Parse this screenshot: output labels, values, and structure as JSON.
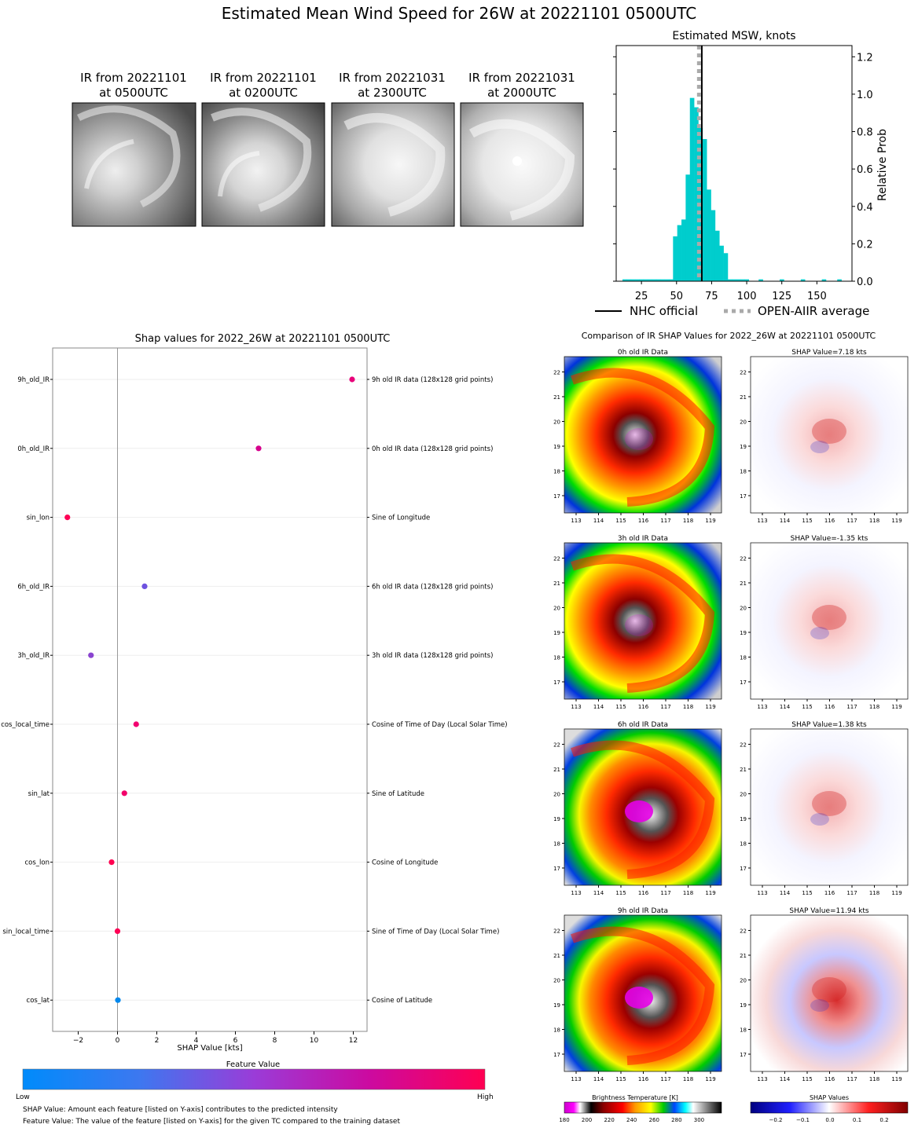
{
  "suptitle": "Estimated Mean Wind Speed for 26W at 20221101 0500UTC",
  "ir_panels": [
    {
      "line1": "IR from 20221101",
      "line2": "at 0500UTC"
    },
    {
      "line1": "IR from 20221101",
      "line2": "at 0200UTC"
    },
    {
      "line1": "IR from 20221031",
      "line2": "at 2300UTC"
    },
    {
      "line1": "IR from 20221031",
      "line2": "at 2000UTC"
    }
  ],
  "hist": {
    "title": "Estimated MSW, knots",
    "ylabel": "Relative Prob",
    "x_ticks": [
      "25",
      "50",
      "75",
      "100",
      "125",
      "150"
    ],
    "y_ticks": [
      "0.0",
      "0.2",
      "0.4",
      "0.6",
      "0.8",
      "1.0",
      "1.2"
    ],
    "legend": [
      "NHC official",
      "OPEN-AIIR average"
    ]
  },
  "shap": {
    "title": "Shap values for 2022_26W at 20221101 0500UTC",
    "xlabel": "SHAP Value [kts]",
    "x_ticks": [
      "−2",
      "0",
      "2",
      "4",
      "6",
      "8",
      "10",
      "12"
    ],
    "colorbar_title": "Feature Value",
    "colorbar_low": "Low",
    "colorbar_high": "High",
    "footnote1": "SHAP Value: Amount each feature [listed on Y-axis] contributes to the predicted intensity",
    "footnote2": "Feature Value: The value of the feature [listed on Y-axis] for the given TC compared to the training dataset"
  },
  "comparison": {
    "title": "Comparison of IR SHAP Values for 2022_26W at 20221101 0500UTC",
    "rows": [
      {
        "ir_title": "0h old IR Data",
        "shap_title": "SHAP Value=7.18 kts"
      },
      {
        "ir_title": "3h old IR Data",
        "shap_title": "SHAP Value=-1.35 kts"
      },
      {
        "ir_title": "6h old IR Data",
        "shap_title": "SHAP Value=1.38 kts"
      },
      {
        "ir_title": "9h old IR Data",
        "shap_title": "SHAP Value=11.94 kts"
      }
    ],
    "lon_ticks": [
      "113",
      "114",
      "115",
      "116",
      "117",
      "118",
      "119"
    ],
    "lat_ticks": [
      "17",
      "18",
      "19",
      "20",
      "21",
      "22"
    ],
    "bt_colorbar_title": "Brightness Temperature [K]",
    "bt_ticks": [
      "180",
      "200",
      "220",
      "240",
      "260",
      "280",
      "300"
    ],
    "shap_colorbar_title": "SHAP Values",
    "shap_ticks": [
      "−0.2",
      "−0.1",
      "0.0",
      "0.1",
      "0.2"
    ]
  },
  "chart_data": [
    {
      "type": "bar",
      "title": "Estimated MSW, knots",
      "xlabel": "",
      "ylabel": "Relative Prob",
      "xlim": [
        7,
        175
      ],
      "ylim": [
        0,
        1.26
      ],
      "bin_width": 3,
      "bins": [
        {
          "x": 13,
          "v": 0.01
        },
        {
          "x": 16,
          "v": 0.01
        },
        {
          "x": 19,
          "v": 0.01
        },
        {
          "x": 22,
          "v": 0.01
        },
        {
          "x": 25,
          "v": 0.01
        },
        {
          "x": 28,
          "v": 0.01
        },
        {
          "x": 31,
          "v": 0.01
        },
        {
          "x": 34,
          "v": 0.01
        },
        {
          "x": 37,
          "v": 0.01
        },
        {
          "x": 40,
          "v": 0.01
        },
        {
          "x": 43,
          "v": 0.01
        },
        {
          "x": 46,
          "v": 0.01
        },
        {
          "x": 49,
          "v": 0.24
        },
        {
          "x": 52,
          "v": 0.3
        },
        {
          "x": 55,
          "v": 0.33
        },
        {
          "x": 58,
          "v": 0.57
        },
        {
          "x": 61,
          "v": 0.98
        },
        {
          "x": 64,
          "v": 0.93
        },
        {
          "x": 67,
          "v": 0.82
        },
        {
          "x": 70,
          "v": 0.76
        },
        {
          "x": 73,
          "v": 0.49
        },
        {
          "x": 76,
          "v": 0.38
        },
        {
          "x": 79,
          "v": 0.27
        },
        {
          "x": 82,
          "v": 0.19
        },
        {
          "x": 85,
          "v": 0.15
        },
        {
          "x": 88,
          "v": 0.01
        },
        {
          "x": 91,
          "v": 0.01
        },
        {
          "x": 94,
          "v": 0.01
        },
        {
          "x": 97,
          "v": 0.01
        },
        {
          "x": 100,
          "v": 0.01
        },
        {
          "x": 110,
          "v": 0.01
        },
        {
          "x": 125,
          "v": 0.01
        },
        {
          "x": 140,
          "v": 0.01
        },
        {
          "x": 155,
          "v": 0.01
        },
        {
          "x": 166,
          "v": 0.01
        }
      ],
      "nhc_official": 68,
      "open_aiir_average": 66,
      "series": [
        {
          "name": "NHC official",
          "color": "#000000"
        },
        {
          "name": "OPEN-AIIR average",
          "color": "#aaaaaa"
        }
      ],
      "bar_color": "#00cdcd"
    },
    {
      "type": "scatter",
      "title": "Shap values for 2022_26W at 20221101 0500UTC",
      "xlabel": "SHAP Value [kts]",
      "xlim": [
        -3.3,
        12.7
      ],
      "features": [
        {
          "name": "9h_old_IR",
          "description": "9h old IR data (128x128 grid points)",
          "shap": 11.94,
          "color": "#e8007a"
        },
        {
          "name": "0h_old_IR",
          "description": "0h old IR data (128x128 grid points)",
          "shap": 7.18,
          "color": "#d6008c"
        },
        {
          "name": "sin_lon",
          "description": "Sine of Longitude",
          "shap": -2.55,
          "color": "#ff0055"
        },
        {
          "name": "6h_old_IR",
          "description": "6h old IR data (128x128 grid points)",
          "shap": 1.38,
          "color": "#6e52e0"
        },
        {
          "name": "3h_old_IR",
          "description": "3h old IR data (128x128 grid points)",
          "shap": -1.35,
          "color": "#8a44d0"
        },
        {
          "name": "cos_local_time",
          "description": "Cosine of Time of Day (Local Solar Time)",
          "shap": 0.95,
          "color": "#f20070"
        },
        {
          "name": "sin_lat",
          "description": "Sine of Latitude",
          "shap": 0.35,
          "color": "#f2006a"
        },
        {
          "name": "cos_lon",
          "description": "Cosine of Longitude",
          "shap": -0.3,
          "color": "#ff0050"
        },
        {
          "name": "sin_local_time",
          "description": "Sine of Time of Day (Local Solar Time)",
          "shap": 0.0,
          "color": "#ff0055"
        },
        {
          "name": "cos_lat",
          "description": "Cosine of Latitude",
          "shap": 0.02,
          "color": "#0088ee"
        }
      ]
    }
  ]
}
